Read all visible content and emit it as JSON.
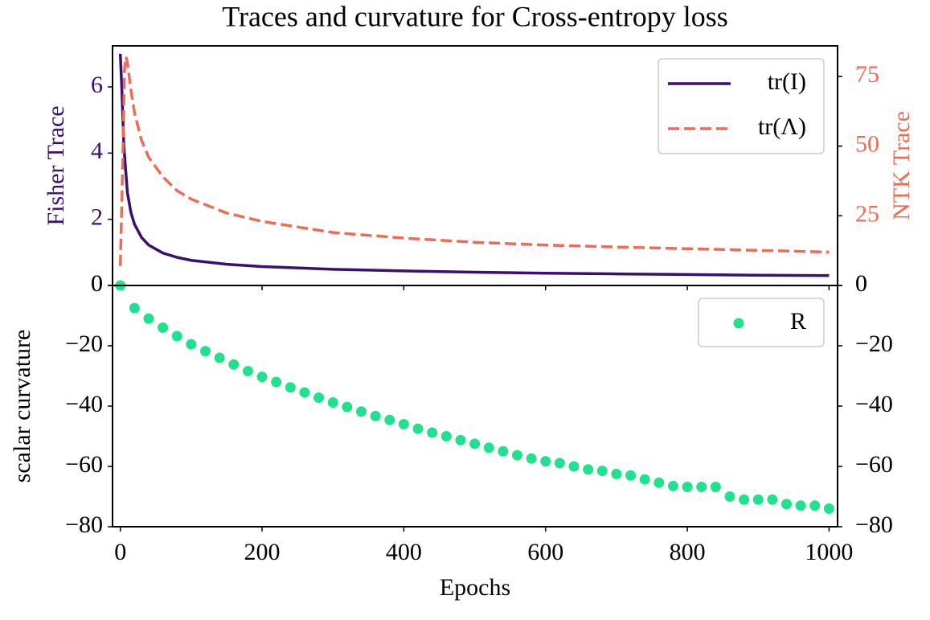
{
  "chart_data": [
    {
      "type": "line",
      "title": "Traces and curvature for Cross-entropy loss",
      "ylabel": "Fisher Trace",
      "y2label": "NTK Trace",
      "xlim": [
        -11,
        1012
      ],
      "ylim": [
        0,
        7.24
      ],
      "yticks": [
        0,
        2,
        4,
        6
      ],
      "y2lim": [
        0,
        86
      ],
      "y2ticks": [
        0,
        25,
        50,
        75
      ],
      "legend": "upper right",
      "series": [
        {
          "name": "tr(I)",
          "color": "#3b0f70",
          "style": "solid",
          "x": [
            0,
            2,
            5,
            10,
            15,
            20,
            30,
            40,
            60,
            80,
            100,
            150,
            200,
            300,
            400,
            500,
            600,
            700,
            800,
            900,
            1000
          ],
          "values": [
            7,
            6.0,
            4.2,
            2.8,
            2.2,
            1.85,
            1.45,
            1.22,
            0.98,
            0.85,
            0.76,
            0.64,
            0.57,
            0.49,
            0.44,
            0.4,
            0.37,
            0.35,
            0.33,
            0.31,
            0.3
          ]
        },
        {
          "name": "tr(Λ)",
          "color": "#ee6c56",
          "style": "dashed",
          "axis": "y2",
          "x": [
            0,
            3,
            6,
            8,
            10,
            15,
            20,
            30,
            40,
            60,
            80,
            100,
            150,
            200,
            300,
            400,
            500,
            600,
            700,
            800,
            900,
            1000
          ],
          "values": [
            7,
            40,
            78,
            82,
            80,
            70,
            62,
            52,
            46,
            39,
            34,
            31,
            26,
            23,
            19,
            17,
            15.5,
            14.5,
            13.8,
            13.2,
            12.6,
            12
          ]
        }
      ]
    },
    {
      "type": "scatter",
      "xlabel": "Epochs",
      "ylabel": "scalar curvature",
      "xlim": [
        -11,
        1012
      ],
      "xticks": [
        0,
        200,
        400,
        600,
        800,
        1000
      ],
      "ylim": [
        -80,
        0
      ],
      "yticks": [
        {
          "value": -80,
          "label": "−80"
        },
        {
          "value": -60,
          "label": "−60"
        },
        {
          "value": -40,
          "label": "−40"
        },
        {
          "value": -20,
          "label": "−20"
        },
        0
      ],
      "legend": "upper right",
      "series": [
        {
          "name": "R",
          "color": "#21e08e",
          "x": [
            0,
            20,
            40,
            60,
            80,
            100,
            120,
            140,
            160,
            180,
            200,
            220,
            240,
            260,
            280,
            300,
            320,
            340,
            360,
            380,
            400,
            420,
            440,
            460,
            480,
            500,
            520,
            540,
            560,
            580,
            600,
            620,
            640,
            660,
            680,
            700,
            720,
            740,
            760,
            780,
            800,
            820,
            840,
            860,
            880,
            900,
            920,
            940,
            960,
            980,
            1000
          ],
          "values": [
            0,
            -7.5,
            -11,
            -14,
            -16.8,
            -19.5,
            -21.8,
            -24,
            -26.2,
            -28.4,
            -30.3,
            -32,
            -33.8,
            -35.5,
            -37.2,
            -38.8,
            -40.3,
            -41.8,
            -43.3,
            -44.6,
            -46,
            -47.5,
            -48.8,
            -50,
            -51.3,
            -52.5,
            -53.8,
            -55,
            -56.3,
            -57.4,
            -58.3,
            -58.9,
            -60,
            -61,
            -61.5,
            -62.5,
            -63,
            -64.3,
            -65.4,
            -66.5,
            -66.8,
            -66.8,
            -66.8,
            -70,
            -71,
            -71,
            -71,
            -72.5,
            -73,
            -73,
            -74
          ]
        }
      ]
    }
  ]
}
